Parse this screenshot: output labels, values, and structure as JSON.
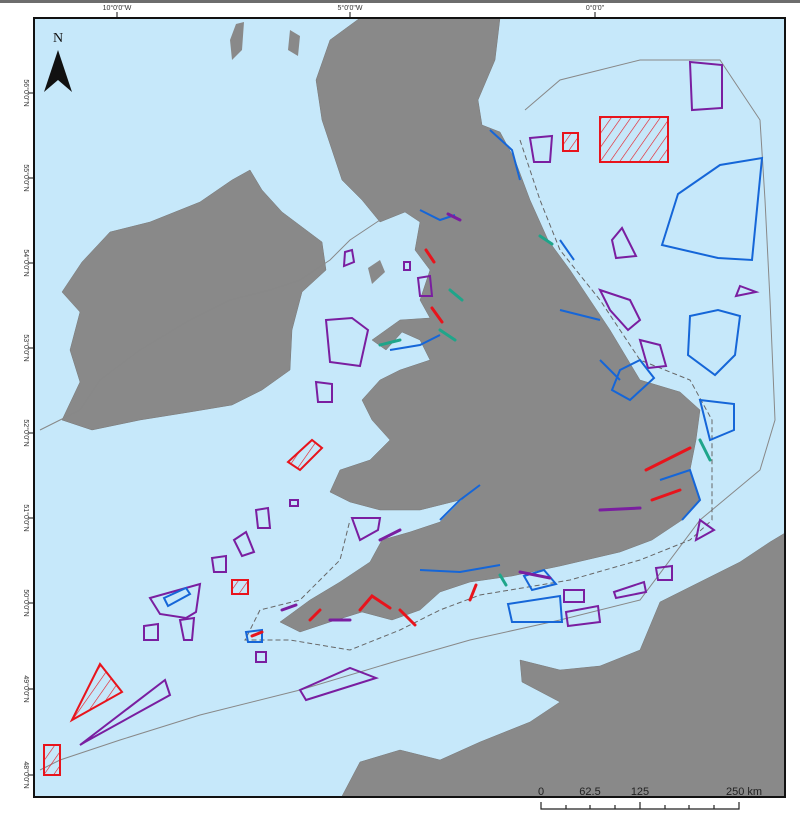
{
  "map": {
    "north_label": "N",
    "longitude_labels": [
      "10°0'0\"W",
      "5°0'0\"W",
      "0°0'0\""
    ],
    "latitude_labels": [
      "56°0'0\"N",
      "55°0'0\"N",
      "54°0'0\"N",
      "53°0'0\"N",
      "52°0'0\"N",
      "51°0'0\"N",
      "50°0'0\"N",
      "49°0'0\"N",
      "48°0'0\"N"
    ],
    "scale_bar": {
      "labels": [
        "0",
        "62.5",
        "125",
        "250 km"
      ]
    },
    "colors": {
      "sea": "#c6e8fa",
      "land": "#898989",
      "red": "#e8141c",
      "blue": "#1566d8",
      "purple": "#7a1ea0",
      "teal": "#1fa58a"
    }
  }
}
